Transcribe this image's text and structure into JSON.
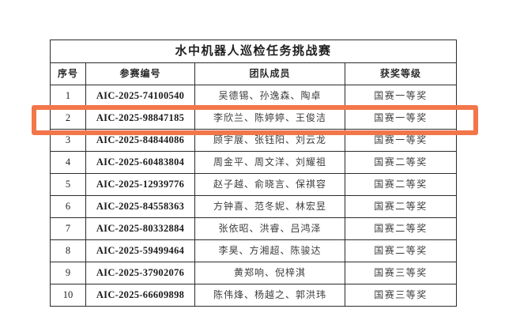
{
  "table": {
    "title": "水中机器人巡检任务挑战赛",
    "columns": [
      "序号",
      "参赛编号",
      "团队成员",
      "获奖等级"
    ],
    "rows": [
      {
        "no": "1",
        "entry_id": "AIC-2025-74100540",
        "members": "吴德锡、孙逸森、陶卓",
        "award": "国赛一等奖"
      },
      {
        "no": "2",
        "entry_id": "AIC-2025-98847185",
        "members": "李欣兰、陈婷婷、王俊洁",
        "award": "国赛一等奖"
      },
      {
        "no": "3",
        "entry_id": "AIC-2025-84844086",
        "members": "顾宇展、张钰阳、刘云龙",
        "award": "国赛一等奖"
      },
      {
        "no": "4",
        "entry_id": "AIC-2025-60483804",
        "members": "周金平、周文洋、刘耀祖",
        "award": "国赛二等奖"
      },
      {
        "no": "5",
        "entry_id": "AIC-2025-12939776",
        "members": "赵子越、俞晓言、保祺容",
        "award": "国赛二等奖"
      },
      {
        "no": "6",
        "entry_id": "AIC-2025-84558363",
        "members": "方钟喜、范冬妮、林宏昱",
        "award": "国赛二等奖"
      },
      {
        "no": "7",
        "entry_id": "AIC-2025-80332884",
        "members": "张依昭、洪睿、吕鸿泽",
        "award": "国赛二等奖"
      },
      {
        "no": "8",
        "entry_id": "AIC-2025-59499464",
        "members": "李昊、方湘超、陈骏达",
        "award": "国赛二等奖"
      },
      {
        "no": "9",
        "entry_id": "AIC-2025-37902076",
        "members": "黄郑响、倪梓淇",
        "award": "国赛三等奖"
      },
      {
        "no": "10",
        "entry_id": "AIC-2025-66609898",
        "members": "陈伟烽、杨越之、郭洪玮",
        "award": "国赛三等奖"
      }
    ],
    "highlighted_row_no": "2",
    "highlight_color": "#f2764a"
  }
}
